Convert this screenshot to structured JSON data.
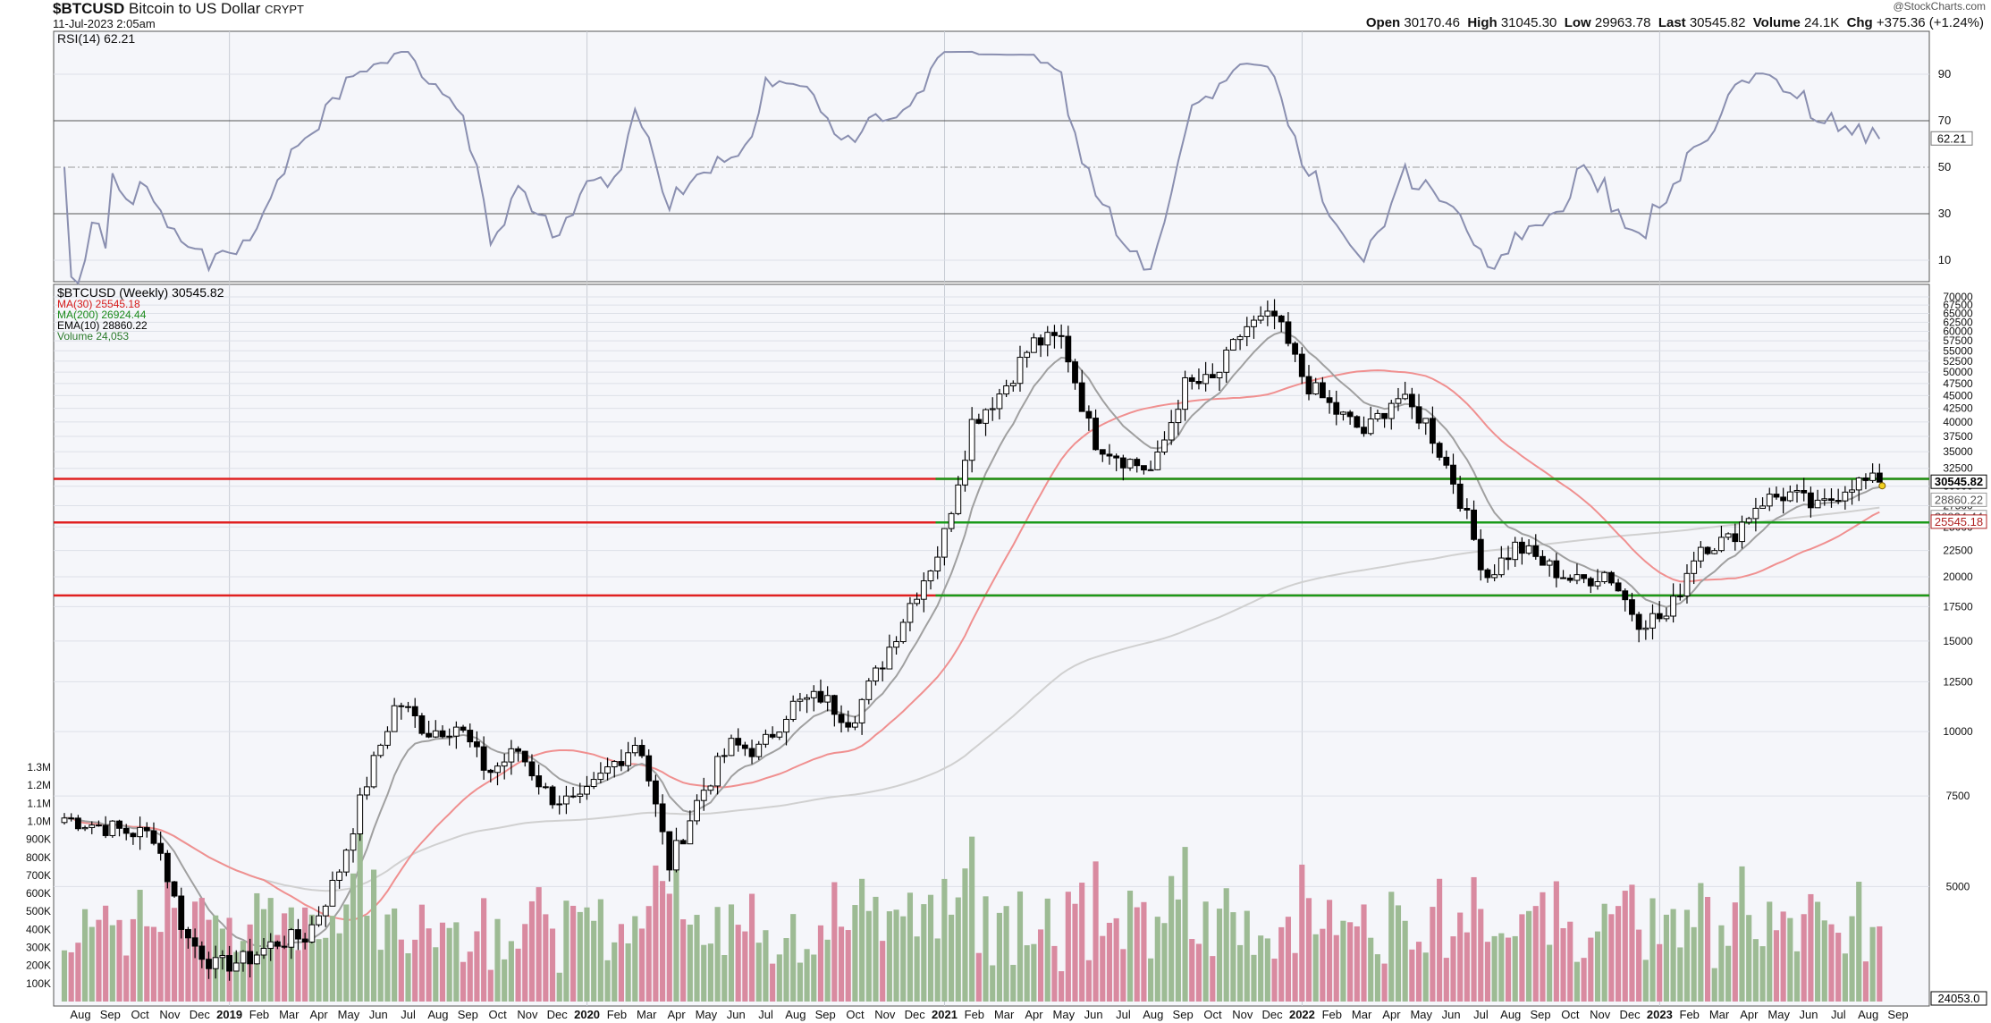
{
  "header": {
    "symbol": "$BTCUSD",
    "name": "Bitcoin to US Dollar",
    "exchange": "CRYPT",
    "datetime": "11-Jul-2023 2:05am",
    "watermark": "@StockCharts.com",
    "open_label": "Open",
    "open": "30170.46",
    "high_label": "High",
    "high": "31045.30",
    "low_label": "Low",
    "low": "29963.78",
    "last_label": "Last",
    "last": "30545.82",
    "volume_label": "Volume",
    "volume": "24.1K",
    "chg_label": "Chg",
    "chg": "+375.36 (+1.24%)"
  },
  "rsi_panel": {
    "legend": "RSI(14) 62.21",
    "value_badge": "62.21",
    "ticks": [
      "90",
      "70",
      "50",
      "30",
      "10"
    ]
  },
  "price_panel": {
    "legend": [
      {
        "text": "$BTCUSD (Weekly) 30545.82",
        "color": "#000000"
      },
      {
        "text": "MA(30) 25545.18",
        "color": "#d61a1a"
      },
      {
        "text": "MA(200) 26924.44",
        "color": "#1a8a1a"
      },
      {
        "text": "EMA(10) 28860.22",
        "color": "#000000"
      },
      {
        "text": "Volume 24,053",
        "color": "#2a7a2a"
      }
    ],
    "badges": [
      {
        "text": "30545.82",
        "bg": "#ffffff",
        "fg": "#000000",
        "border": "#000000"
      },
      {
        "text": "28860.22",
        "bg": "#ffffff",
        "fg": "#555555",
        "border": "#999999"
      },
      {
        "text": "26924.44",
        "bg": "#ffffff",
        "fg": "#555555",
        "border": "#999999"
      },
      {
        "text": "25545.18",
        "bg": "#ffffff",
        "fg": "#b02020",
        "border": "#b02020"
      },
      {
        "text": "24053.0",
        "bg": "#ffffff",
        "fg": "#000000",
        "border": "#000000"
      }
    ]
  },
  "colors": {
    "up_volume": "#9dbb94",
    "down_volume": "#d98aa0",
    "rsi_line": "#8a8fb0",
    "rsi_fill": "#5a9a88",
    "ma30": "#f09090",
    "ma200": "#d0d0d0",
    "ema10": "#a0a0a0",
    "red_line": "#e02020",
    "green_line": "#1a9a1a",
    "panel_bg": "#f5f6fa",
    "grid": "#dde0e8"
  },
  "chart_data": {
    "type": "candlestick",
    "interval": "weekly",
    "x_labels": [
      "Aug",
      "Sep",
      "Oct",
      "Nov",
      "Dec",
      "2019",
      "Feb",
      "Mar",
      "Apr",
      "May",
      "Jun",
      "Jul",
      "Aug",
      "Sep",
      "Oct",
      "Nov",
      "Dec",
      "2020",
      "Feb",
      "Mar",
      "Apr",
      "May",
      "Jun",
      "Jul",
      "Aug",
      "Sep",
      "Oct",
      "Nov",
      "Dec",
      "2021",
      "Feb",
      "Mar",
      "Apr",
      "May",
      "Jun",
      "Jul",
      "Aug",
      "Sep",
      "Oct",
      "Nov",
      "Dec",
      "2022",
      "Feb",
      "Mar",
      "Apr",
      "May",
      "Jun",
      "Jul",
      "Aug",
      "Sep",
      "Oct",
      "Nov",
      "Dec",
      "2023",
      "Feb",
      "Mar",
      "Apr",
      "May",
      "Jun",
      "Jul",
      "Aug",
      "Sep"
    ],
    "price_axis": {
      "scale": "log",
      "ticks": [
        70000,
        67500,
        65000,
        62500,
        60000,
        57500,
        55000,
        52500,
        50000,
        47500,
        45000,
        42500,
        40000,
        37500,
        35000,
        32500,
        30000,
        27500,
        25000,
        22500,
        20000,
        17500,
        15000,
        12500,
        10000,
        7500,
        5000
      ],
      "range": [
        3000,
        70000
      ]
    },
    "volume_axis": {
      "ticks": [
        "1.3M",
        "1.2M",
        "1.1M",
        "1.0M",
        "900K",
        "800K",
        "700K",
        "600K",
        "500K",
        "400K",
        "300K",
        "200K",
        "100K"
      ],
      "range": [
        0,
        1300000
      ]
    },
    "horizontal_lines": [
      {
        "price": 31000,
        "color": "red"
      },
      {
        "price": 31000,
        "color": "green",
        "from": "2021"
      },
      {
        "price": 25500,
        "color": "red"
      },
      {
        "price": 25500,
        "color": "green",
        "from": "2021"
      },
      {
        "price": 18400,
        "color": "red"
      },
      {
        "price": 18400,
        "color": "green",
        "from": "2021"
      }
    ],
    "close_anchors": [
      [
        "Aug 2018",
        6800
      ],
      [
        "Sep 2018",
        6600
      ],
      [
        "Oct 2018",
        6400
      ],
      [
        "Nov 2018",
        6300
      ],
      [
        "Nov 2018",
        4000
      ],
      [
        "Dec 2018",
        3500
      ],
      [
        "2019",
        3600
      ],
      [
        "Feb 2019",
        3900
      ],
      [
        "Mar 2019",
        4000
      ],
      [
        "Apr 2019",
        5200
      ],
      [
        "May 2019",
        8000
      ],
      [
        "Jun 2019",
        11500
      ],
      [
        "Jul 2019",
        10000
      ],
      [
        "Aug 2019",
        10300
      ],
      [
        "Sep 2019",
        8300
      ],
      [
        "Oct 2019",
        9200
      ],
      [
        "Nov 2019",
        7500
      ],
      [
        "Dec 2019",
        7200
      ],
      [
        "2020",
        8500
      ],
      [
        "Feb 2020",
        9700
      ],
      [
        "Mar 2020",
        5500
      ],
      [
        "Apr 2020",
        7500
      ],
      [
        "May 2020",
        9400
      ],
      [
        "Jun 2020",
        9200
      ],
      [
        "Jul 2020",
        11200
      ],
      [
        "Aug 2020",
        11700
      ],
      [
        "Sep 2020",
        10500
      ],
      [
        "Oct 2020",
        13500
      ],
      [
        "Nov 2020",
        18000
      ],
      [
        "Dec 2020",
        23000
      ],
      [
        "2021",
        40000
      ],
      [
        "Feb 2021",
        46000
      ],
      [
        "Mar 2021",
        57000
      ],
      [
        "Apr 2021",
        58000
      ],
      [
        "May 2021",
        37000
      ],
      [
        "Jun 2021",
        34000
      ],
      [
        "Jul 2021",
        32000
      ],
      [
        "Aug 2021",
        47000
      ],
      [
        "Sep 2021",
        48000
      ],
      [
        "Oct 2021",
        61000
      ],
      [
        "Nov 2021",
        64000
      ],
      [
        "Dec 2021",
        48000
      ],
      [
        "2022",
        42000
      ],
      [
        "Feb 2022",
        38000
      ],
      [
        "Mar 2022",
        45000
      ],
      [
        "Apr 2022",
        40000
      ],
      [
        "May 2022",
        30000
      ],
      [
        "Jun 2022",
        20000
      ],
      [
        "Jul 2022",
        23000
      ],
      [
        "Aug 2022",
        21000
      ],
      [
        "Sep 2022",
        19500
      ],
      [
        "Oct 2022",
        20500
      ],
      [
        "Nov 2022",
        16500
      ],
      [
        "Dec 2022",
        16700
      ],
      [
        "2023",
        23000
      ],
      [
        "Feb 2023",
        23500
      ],
      [
        "Mar 2023",
        28000
      ],
      [
        "Apr 2023",
        29000
      ],
      [
        "May 2023",
        27000
      ],
      [
        "Jun 2023",
        30500
      ],
      [
        "Jul 2023",
        30545.82
      ]
    ],
    "series": [
      {
        "name": "MA(30)",
        "last": 25545.18
      },
      {
        "name": "MA(200)",
        "last": 26924.44
      },
      {
        "name": "EMA(10)",
        "last": 28860.22
      },
      {
        "name": "RSI(14)",
        "last": 62.21
      },
      {
        "name": "Volume",
        "last": 24053
      }
    ]
  }
}
